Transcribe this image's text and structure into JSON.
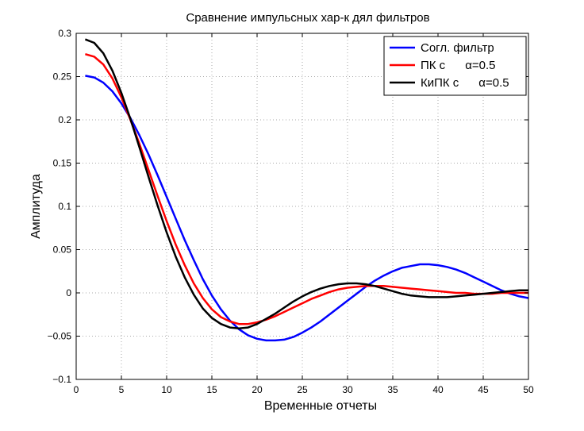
{
  "chart_data": {
    "type": "line",
    "title": "Сравнение импульсных хар-к дял фильтров",
    "xlabel": "Временные отчеты",
    "ylabel": "Амплитуда",
    "xlim": [
      0,
      50
    ],
    "ylim": [
      -0.1,
      0.3
    ],
    "x_ticks": [
      0,
      5,
      10,
      15,
      20,
      25,
      30,
      35,
      40,
      45,
      50
    ],
    "y_ticks": [
      -0.1,
      -0.05,
      0,
      0.05,
      0.1,
      0.15,
      0.2,
      0.25,
      0.3
    ],
    "x_tick_labels": [
      "0",
      "5",
      "10",
      "15",
      "20",
      "25",
      "30",
      "35",
      "40",
      "45",
      "50"
    ],
    "y_tick_labels": [
      "−0.1",
      "−0.05",
      "0",
      "0.05",
      "0.1",
      "0.15",
      "0.2",
      "0.25",
      "0.3"
    ],
    "grid": true,
    "legend_position": "top-right",
    "series": [
      {
        "name": "Согл. фильтр",
        "color": "#0000ff",
        "x": [
          1,
          2,
          3,
          4,
          5,
          6,
          7,
          8,
          9,
          10,
          11,
          12,
          13,
          14,
          15,
          16,
          17,
          18,
          19,
          20,
          21,
          22,
          23,
          24,
          25,
          26,
          27,
          28,
          29,
          30,
          31,
          32,
          33,
          34,
          35,
          36,
          37,
          38,
          39,
          40,
          41,
          42,
          43,
          44,
          45,
          46,
          47,
          48,
          49,
          50
        ],
        "y": [
          0.251,
          0.249,
          0.243,
          0.233,
          0.219,
          0.202,
          0.182,
          0.16,
          0.136,
          0.111,
          0.086,
          0.061,
          0.038,
          0.016,
          -0.003,
          -0.019,
          -0.032,
          -0.042,
          -0.049,
          -0.053,
          -0.055,
          -0.055,
          -0.054,
          -0.051,
          -0.046,
          -0.04,
          -0.033,
          -0.025,
          -0.017,
          -0.009,
          -0.001,
          0.007,
          0.014,
          0.02,
          0.025,
          0.029,
          0.031,
          0.033,
          0.033,
          0.032,
          0.03,
          0.027,
          0.023,
          0.018,
          0.013,
          0.008,
          0.003,
          -0.001,
          -0.004,
          -0.006
        ]
      },
      {
        "name": "ПК с      α=0.5",
        "color": "#ff0000",
        "x": [
          1,
          2,
          3,
          4,
          5,
          6,
          7,
          8,
          9,
          10,
          11,
          12,
          13,
          14,
          15,
          16,
          17,
          18,
          19,
          20,
          21,
          22,
          23,
          24,
          25,
          26,
          27,
          28,
          29,
          30,
          31,
          32,
          33,
          34,
          35,
          36,
          37,
          38,
          39,
          40,
          41,
          42,
          43,
          44,
          45,
          46,
          47,
          48,
          49,
          50
        ],
        "y": [
          0.276,
          0.273,
          0.264,
          0.248,
          0.226,
          0.2,
          0.172,
          0.142,
          0.112,
          0.083,
          0.056,
          0.032,
          0.011,
          -0.006,
          -0.019,
          -0.028,
          -0.033,
          -0.036,
          -0.036,
          -0.034,
          -0.031,
          -0.027,
          -0.022,
          -0.017,
          -0.012,
          -0.007,
          -0.003,
          0.001,
          0.004,
          0.006,
          0.007,
          0.008,
          0.008,
          0.008,
          0.007,
          0.006,
          0.005,
          0.004,
          0.003,
          0.002,
          0.001,
          0.0,
          0.0,
          -0.001,
          -0.001,
          -0.001,
          0.0,
          0.0,
          0.0,
          0.0
        ]
      },
      {
        "name": "КиПК с      α=0.5",
        "color": "#000000",
        "x": [
          1,
          2,
          3,
          4,
          5,
          6,
          7,
          8,
          9,
          10,
          11,
          12,
          13,
          14,
          15,
          16,
          17,
          18,
          19,
          20,
          21,
          22,
          23,
          24,
          25,
          26,
          27,
          28,
          29,
          30,
          31,
          32,
          33,
          34,
          35,
          36,
          37,
          38,
          39,
          40,
          41,
          42,
          43,
          44,
          45,
          46,
          47,
          48,
          49,
          50
        ],
        "y": [
          0.293,
          0.289,
          0.277,
          0.257,
          0.231,
          0.201,
          0.168,
          0.134,
          0.101,
          0.07,
          0.042,
          0.018,
          -0.002,
          -0.018,
          -0.029,
          -0.036,
          -0.04,
          -0.041,
          -0.04,
          -0.036,
          -0.03,
          -0.024,
          -0.017,
          -0.01,
          -0.004,
          0.001,
          0.005,
          0.008,
          0.01,
          0.011,
          0.011,
          0.01,
          0.008,
          0.005,
          0.002,
          -0.001,
          -0.003,
          -0.004,
          -0.005,
          -0.005,
          -0.005,
          -0.004,
          -0.003,
          -0.002,
          -0.001,
          0.0,
          0.001,
          0.002,
          0.003,
          0.003
        ]
      }
    ],
    "colors": {
      "axes": "#000000",
      "grid": "#aaaaaa",
      "background": "#ffffff"
    }
  }
}
